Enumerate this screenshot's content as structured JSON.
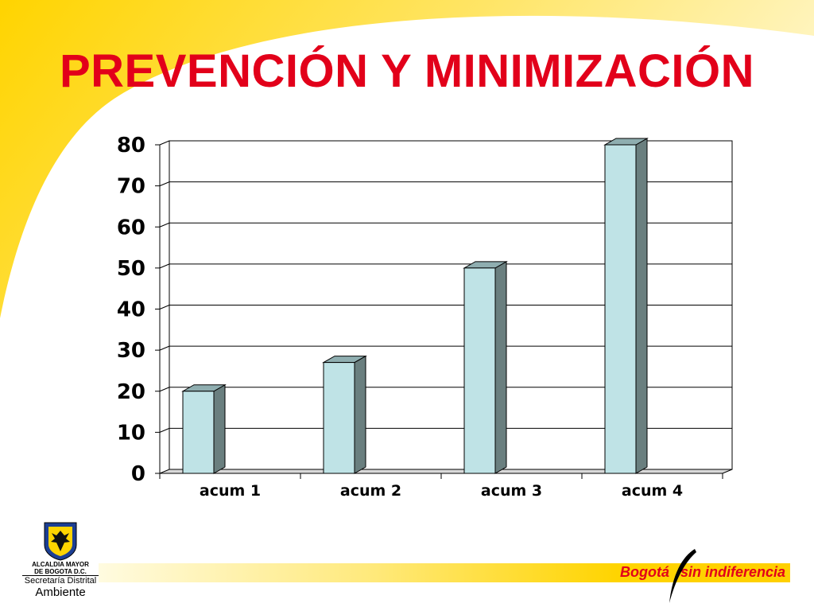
{
  "slide": {
    "title": "PREVENCIÓN Y MINIMIZACIÓN"
  },
  "colors": {
    "title": "#e2001a",
    "bar_front": "#bfe3e6",
    "bar_side": "#6a7f7f",
    "bar_top": "#8faeb0",
    "background_accent": "#ffd400"
  },
  "chart_data": {
    "type": "bar",
    "title": "",
    "xlabel": "",
    "ylabel": "",
    "categories": [
      "acum 1",
      "acum 2",
      "acum 3",
      "acum 4"
    ],
    "values": [
      20,
      27,
      50,
      80
    ],
    "ylim": [
      0,
      80
    ],
    "yticks": [
      0,
      10,
      20,
      30,
      40,
      50,
      60,
      70,
      80
    ],
    "grid": true,
    "legend": "none",
    "style": "3d-bar"
  },
  "footer": {
    "logo_line1": "ALCALDIA MAYOR",
    "logo_line2": "DE BOGOTA D.C.",
    "logo_line3": "Secretaría Distrital",
    "logo_line4": "Ambiente",
    "logo_icon": "bogota-coat-of-arms-icon",
    "brand_part1": "Bogotá",
    "brand_part2": "sin indiferencia"
  }
}
